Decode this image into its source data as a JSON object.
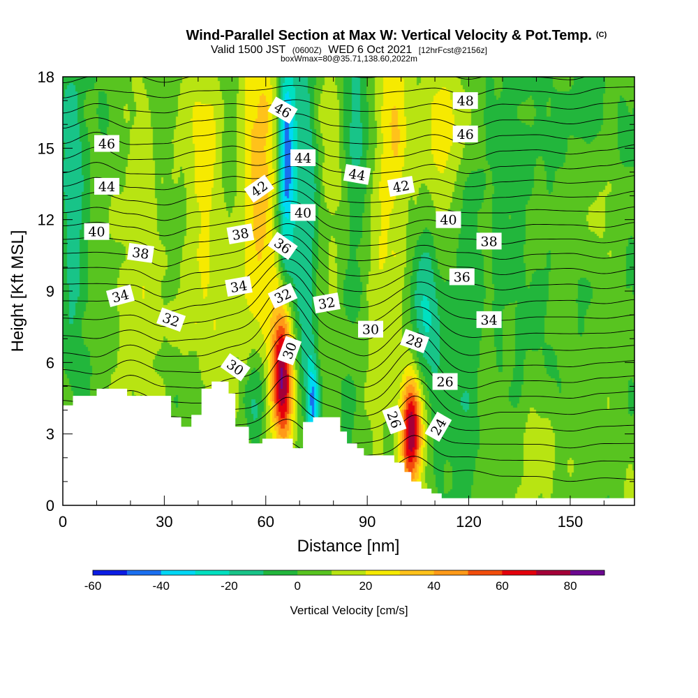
{
  "chart_data": {
    "type": "contour-section",
    "title": "Wind-Parallel Section at Max W: Vertical Velocity & Pot.Temp.",
    "title_mark": "(C)",
    "subtitle_parts": [
      "Valid 1500 JST",
      "(0600Z)",
      "WED 6 Oct 2021",
      "[12hrFcst@2156z]"
    ],
    "subtitle2": "boxWmax=80@35.71,138.60,2022m",
    "xlabel": "Distance [nm]",
    "ylabel": "Height [Kft MSL]",
    "xlim": [
      0,
      169
    ],
    "ylim": [
      0,
      18
    ],
    "x_ticks": [
      0,
      30,
      60,
      90,
      120,
      150
    ],
    "y_ticks": [
      0,
      3,
      6,
      9,
      12,
      15,
      18
    ],
    "colorbar": {
      "label": "Vertical Velocity [cm/s]",
      "ticks": [
        -60,
        -40,
        -20,
        0,
        20,
        40,
        60,
        80
      ],
      "levels": [
        -60,
        -50,
        -40,
        -30,
        -20,
        -10,
        0,
        10,
        20,
        30,
        40,
        50,
        60,
        70,
        80
      ],
      "colors": [
        "#0b1ce4",
        "#1a6ff0",
        "#00d8f6",
        "#00e0c0",
        "#18c488",
        "#22b63c",
        "#58c420",
        "#b8e412",
        "#f6ea00",
        "#ffc21a",
        "#ff9a18",
        "#f24d0c",
        "#e4000c",
        "#a40038",
        "#6c0890"
      ]
    },
    "terrain_kft": [
      [
        0,
        4.2
      ],
      [
        3,
        4.2
      ],
      [
        3,
        4.6
      ],
      [
        10,
        4.6
      ],
      [
        10,
        4.9
      ],
      [
        19,
        4.9
      ],
      [
        19,
        4.6
      ],
      [
        32,
        4.6
      ],
      [
        32,
        3.7
      ],
      [
        35,
        3.7
      ],
      [
        35,
        3.3
      ],
      [
        38,
        3.3
      ],
      [
        38,
        3.8
      ],
      [
        41,
        3.8
      ],
      [
        41,
        4.9
      ],
      [
        44,
        4.9
      ],
      [
        44,
        5.2
      ],
      [
        49,
        5.2
      ],
      [
        49,
        4.7
      ],
      [
        51,
        4.7
      ],
      [
        51,
        3.3
      ],
      [
        55,
        3.3
      ],
      [
        55,
        2.6
      ],
      [
        59,
        2.6
      ],
      [
        59,
        2.8
      ],
      [
        68,
        2.8
      ],
      [
        68,
        2.4
      ],
      [
        71,
        2.4
      ],
      [
        71,
        3.5
      ],
      [
        74,
        3.5
      ],
      [
        74,
        3.7
      ],
      [
        82,
        3.7
      ],
      [
        82,
        3.1
      ],
      [
        84,
        3.1
      ],
      [
        84,
        2.6
      ],
      [
        87,
        2.6
      ],
      [
        87,
        2.4
      ],
      [
        89,
        2.4
      ],
      [
        89,
        2.1
      ],
      [
        98,
        2.1
      ],
      [
        98,
        1.8
      ],
      [
        101,
        1.8
      ],
      [
        101,
        1.4
      ],
      [
        103,
        1.4
      ],
      [
        103,
        1.0
      ],
      [
        106,
        1.0
      ],
      [
        106,
        0.7
      ],
      [
        109,
        0.7
      ],
      [
        109,
        0.5
      ],
      [
        112,
        0.5
      ],
      [
        112,
        0.3
      ],
      [
        169,
        0.3
      ]
    ],
    "updrafts": [
      {
        "x": 65,
        "y": 5.5,
        "w": 74,
        "sx": 2.2,
        "sy": 2.0
      },
      {
        "x": 103,
        "y": 3.2,
        "w": 68,
        "sx": 2.2,
        "sy": 1.7
      },
      {
        "x": 58,
        "y": 13.5,
        "w": 28,
        "sx": 4,
        "sy": 6
      },
      {
        "x": 97,
        "y": 13,
        "w": 25,
        "sx": 4,
        "sy": 6
      },
      {
        "x": 42,
        "y": 12,
        "w": 16,
        "sx": 5,
        "sy": 7
      },
      {
        "x": 24,
        "y": 13,
        "w": 14,
        "sx": 5,
        "sy": 6
      },
      {
        "x": 113,
        "y": 16,
        "w": 18,
        "sx": 4,
        "sy": 3
      },
      {
        "x": 80,
        "y": 15,
        "w": 12,
        "sx": 3,
        "sy": 4
      },
      {
        "x": 140,
        "y": 2.5,
        "w": 12,
        "sx": 12,
        "sy": 2
      }
    ],
    "downdrafts": [
      {
        "x": 66,
        "y": 14.5,
        "w": -52,
        "sx": 1.8,
        "sy": 3.5
      },
      {
        "x": 74,
        "y": 4.3,
        "w": -45,
        "sx": 1.3,
        "sy": 1.3
      },
      {
        "x": 57,
        "y": 4.3,
        "w": -30,
        "sx": 2.5,
        "sy": 1.3
      },
      {
        "x": 72,
        "y": 12,
        "w": -22,
        "sx": 2.5,
        "sy": 6
      },
      {
        "x": 86,
        "y": 15,
        "w": -20,
        "sx": 3,
        "sy": 5
      },
      {
        "x": 108,
        "y": 8,
        "w": -25,
        "sx": 3,
        "sy": 2.5
      },
      {
        "x": 3,
        "y": 13,
        "w": -20,
        "sx": 2.5,
        "sy": 5
      },
      {
        "x": 135,
        "y": 10,
        "w": -10,
        "sx": 10,
        "sy": 6
      },
      {
        "x": 38,
        "y": 4.8,
        "w": -12,
        "sx": 4,
        "sy": 1.5
      },
      {
        "x": 120,
        "y": 2.5,
        "w": -10,
        "sx": 5,
        "sy": 2
      }
    ],
    "theta_labels": [
      {
        "text": "46",
        "x": 13,
        "y": 15.2,
        "angle": 0
      },
      {
        "text": "44",
        "x": 13,
        "y": 13.4,
        "angle": 0
      },
      {
        "text": "40",
        "x": 10,
        "y": 11.5,
        "angle": 0
      },
      {
        "text": "38",
        "x": 23,
        "y": 10.6,
        "angle": 8
      },
      {
        "text": "34",
        "x": 17,
        "y": 8.8,
        "angle": -15
      },
      {
        "text": "32",
        "x": 32,
        "y": 7.8,
        "angle": 20
      },
      {
        "text": "30",
        "x": 51,
        "y": 5.8,
        "angle": 35
      },
      {
        "text": "34",
        "x": 52,
        "y": 9.2,
        "angle": -10
      },
      {
        "text": "38",
        "x": 52.5,
        "y": 11.4,
        "angle": -10
      },
      {
        "text": "42",
        "x": 58,
        "y": 13.3,
        "angle": -35
      },
      {
        "text": "46",
        "x": 65,
        "y": 16.6,
        "angle": 30
      },
      {
        "text": "36",
        "x": 65,
        "y": 10.9,
        "angle": 35
      },
      {
        "text": "32",
        "x": 65,
        "y": 8.8,
        "angle": -25
      },
      {
        "text": "30",
        "x": 67,
        "y": 6.5,
        "angle": -70
      },
      {
        "text": "44",
        "x": 71,
        "y": 14.6,
        "angle": 0
      },
      {
        "text": "40",
        "x": 71,
        "y": 12.3,
        "angle": 0
      },
      {
        "text": "32",
        "x": 78,
        "y": 8.5,
        "angle": -10
      },
      {
        "text": "44",
        "x": 87,
        "y": 13.9,
        "angle": 10
      },
      {
        "text": "30",
        "x": 91,
        "y": 7.4,
        "angle": 0
      },
      {
        "text": "42",
        "x": 100,
        "y": 13.4,
        "angle": -10
      },
      {
        "text": "28",
        "x": 104,
        "y": 6.9,
        "angle": 20
      },
      {
        "text": "26",
        "x": 98,
        "y": 3.6,
        "angle": 70
      },
      {
        "text": "24",
        "x": 111,
        "y": 3.3,
        "angle": -60
      },
      {
        "text": "26",
        "x": 113,
        "y": 5.2,
        "angle": 0
      },
      {
        "text": "48",
        "x": 119,
        "y": 17.0,
        "angle": 0
      },
      {
        "text": "46",
        "x": 119,
        "y": 15.6,
        "angle": 0
      },
      {
        "text": "40",
        "x": 114,
        "y": 12.0,
        "angle": 0
      },
      {
        "text": "36",
        "x": 118,
        "y": 9.6,
        "angle": 0
      },
      {
        "text": "38",
        "x": 126,
        "y": 11.1,
        "angle": 0
      },
      {
        "text": "34",
        "x": 126,
        "y": 7.8,
        "angle": 0
      }
    ]
  }
}
